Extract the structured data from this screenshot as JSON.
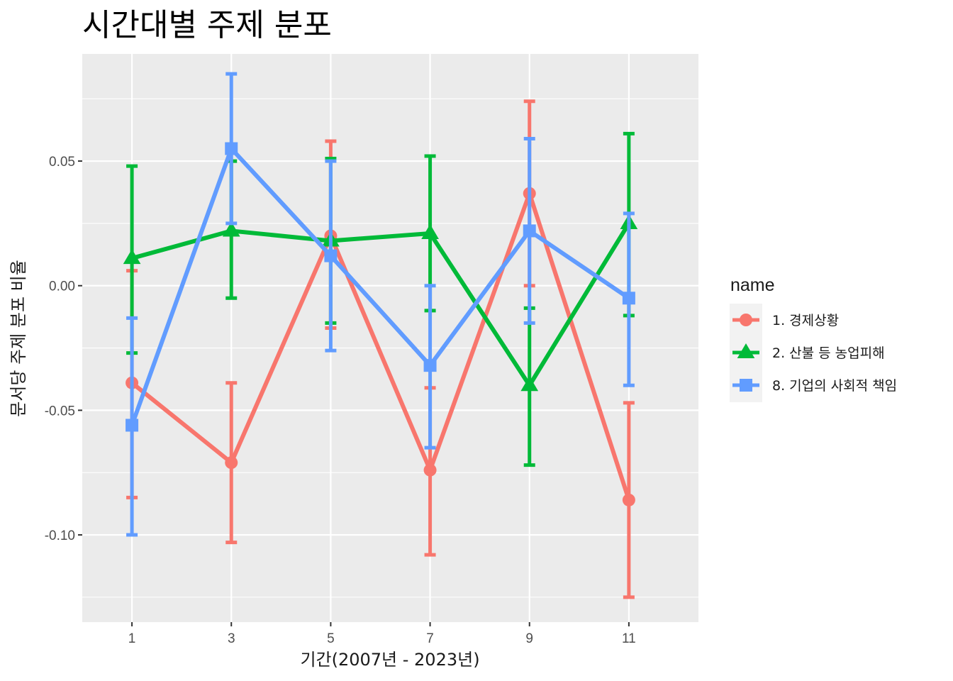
{
  "chart_data": {
    "type": "line",
    "title": "시간대별 주제 분포",
    "xlabel": "기간(2007년 - 2023년)",
    "ylabel": "문서당 주제 분포 비율",
    "x": [
      1,
      3,
      5,
      7,
      9,
      11
    ],
    "xlim": [
      0,
      12.4
    ],
    "ylim": [
      -0.135,
      0.093
    ],
    "x_ticks": [
      "1",
      "3",
      "5",
      "7",
      "9",
      "11"
    ],
    "y_ticks": [
      {
        "value": 0.05,
        "label": "0.05"
      },
      {
        "value": 0.0,
        "label": "0.00"
      },
      {
        "value": -0.05,
        "label": "-0.05"
      },
      {
        "value": -0.1,
        "label": "-0.10"
      }
    ],
    "grid": true,
    "legend": {
      "title": "name",
      "position": "right"
    },
    "series": [
      {
        "name": "1. 경제상황",
        "color": "#F8766D",
        "marker": "circle",
        "values": [
          -0.039,
          -0.071,
          0.02,
          -0.074,
          0.037,
          -0.086
        ],
        "lower": [
          -0.085,
          -0.103,
          -0.017,
          -0.108,
          0.0,
          -0.125
        ],
        "upper": [
          0.006,
          -0.039,
          0.058,
          -0.041,
          0.074,
          -0.047
        ]
      },
      {
        "name": "2. 산불 등 농업피해",
        "color": "#00BA38",
        "marker": "triangle",
        "values": [
          0.011,
          0.022,
          0.018,
          0.021,
          -0.04,
          0.025
        ],
        "lower": [
          -0.027,
          -0.005,
          -0.015,
          -0.01,
          -0.072,
          -0.012
        ],
        "upper": [
          0.048,
          0.05,
          0.051,
          0.052,
          -0.009,
          0.061
        ]
      },
      {
        "name": "8. 기업의 사회적 책임",
        "color": "#619CFF",
        "marker": "square",
        "values": [
          -0.056,
          0.055,
          0.012,
          -0.032,
          0.022,
          -0.005
        ],
        "lower": [
          -0.1,
          0.025,
          -0.026,
          -0.065,
          -0.015,
          -0.04
        ],
        "upper": [
          -0.013,
          0.085,
          0.05,
          0.0,
          0.059,
          0.029
        ]
      }
    ]
  }
}
